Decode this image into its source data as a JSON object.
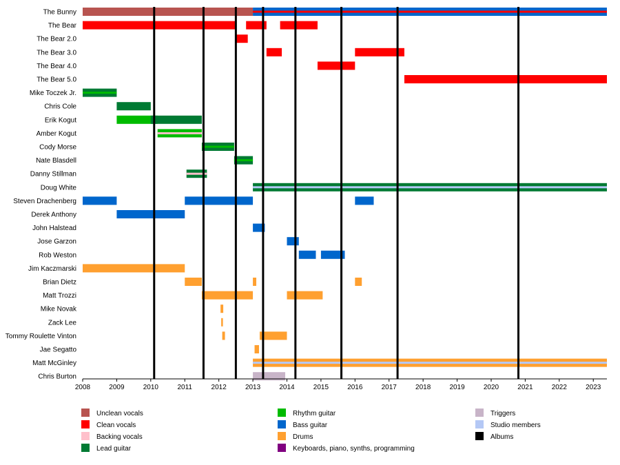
{
  "chart_data": {
    "type": "timeline",
    "title": "",
    "xlabel": "",
    "ylabel": "",
    "xlim": [
      2008.0,
      2023.4
    ],
    "x_ticks": [
      2008,
      2009,
      2010,
      2011,
      2012,
      2013,
      2014,
      2015,
      2016,
      2017,
      2018,
      2019,
      2020,
      2021,
      2022,
      2023
    ],
    "grid": false,
    "legend_position": "bottom",
    "role_colors": {
      "Unclean vocals": "#b85450",
      "Clean vocals": "#ff0000",
      "Backing vocals": "#ffc0cb",
      "Lead guitar": "#007a33",
      "Rhythm guitar": "#00bb00",
      "Bass guitar": "#0066cc",
      "Drums": "#ffa030",
      "Keyboards, piano, synths, programming": "#800080",
      "Triggers": "#c8b4c8",
      "Studio members": "#b4c8f5",
      "Albums": "#000000"
    },
    "legend": [
      {
        "label": "Unclean vocals",
        "color": "#b85450"
      },
      {
        "label": "Clean vocals",
        "color": "#ff0000"
      },
      {
        "label": "Backing vocals",
        "color": "#ffc0cb"
      },
      {
        "label": "Lead guitar",
        "color": "#007a33"
      },
      {
        "label": "Rhythm guitar",
        "color": "#00bb00"
      },
      {
        "label": "Bass guitar",
        "color": "#0066cc"
      },
      {
        "label": "Drums",
        "color": "#ffa030"
      },
      {
        "label": "Keyboards, piano, synths, programming",
        "color": "#800080"
      },
      {
        "label": "Triggers",
        "color": "#c8b4c8"
      },
      {
        "label": "Studio members",
        "color": "#b4c8f5"
      },
      {
        "label": "Albums",
        "color": "#000000"
      }
    ],
    "albums": [
      2010.1,
      2011.55,
      2012.5,
      2013.3,
      2014.25,
      2015.6,
      2017.25,
      2020.8
    ],
    "members": [
      {
        "name": "The Bunny",
        "bars": [
          {
            "start": 2008.0,
            "end": 2013.0,
            "role": "Unclean vocals"
          },
          {
            "start": 2013.0,
            "end": 2023.4,
            "role": "Bass guitar",
            "accent": "Clean vocals"
          }
        ]
      },
      {
        "name": "The Bear",
        "bars": [
          {
            "start": 2008.0,
            "end": 2012.5,
            "role": "Clean vocals"
          },
          {
            "start": 2012.8,
            "end": 2013.4,
            "role": "Clean vocals"
          },
          {
            "start": 2013.8,
            "end": 2014.9,
            "role": "Clean vocals"
          }
        ]
      },
      {
        "name": "The Bear 2.0",
        "bars": [
          {
            "start": 2012.5,
            "end": 2012.85,
            "role": "Clean vocals"
          }
        ]
      },
      {
        "name": "The Bear 3.0",
        "bars": [
          {
            "start": 2013.4,
            "end": 2013.85,
            "role": "Clean vocals"
          },
          {
            "start": 2016.0,
            "end": 2017.45,
            "role": "Clean vocals"
          }
        ]
      },
      {
        "name": "The Bear 4.0",
        "bars": [
          {
            "start": 2014.9,
            "end": 2016.0,
            "role": "Clean vocals"
          }
        ]
      },
      {
        "name": "The Bear 5.0",
        "bars": [
          {
            "start": 2017.45,
            "end": 2023.4,
            "role": "Clean vocals"
          }
        ]
      },
      {
        "name": "Mike Toczek Jr.",
        "bars": [
          {
            "start": 2008.0,
            "end": 2009.0,
            "role": "Lead guitar",
            "accent": "Rhythm guitar"
          }
        ]
      },
      {
        "name": "Chris Cole",
        "bars": [
          {
            "start": 2009.0,
            "end": 2010.0,
            "role": "Lead guitar"
          }
        ]
      },
      {
        "name": "Erik Kogut",
        "bars": [
          {
            "start": 2009.0,
            "end": 2010.2,
            "role": "Rhythm guitar"
          },
          {
            "start": 2010.0,
            "end": 2011.5,
            "role": "Lead guitar"
          }
        ]
      },
      {
        "name": "Amber Kogut",
        "bars": [
          {
            "start": 2010.2,
            "end": 2011.5,
            "role": "Rhythm guitar",
            "accent": "Backing vocals"
          }
        ]
      },
      {
        "name": "Cody Morse",
        "bars": [
          {
            "start": 2011.5,
            "end": 2012.45,
            "role": "Lead guitar",
            "accent": "Rhythm guitar"
          }
        ]
      },
      {
        "name": "Nate Blasdell",
        "bars": [
          {
            "start": 2012.45,
            "end": 2013.0,
            "role": "Lead guitar",
            "accent": "Rhythm guitar"
          }
        ]
      },
      {
        "name": "Danny Stillman",
        "bars": [
          {
            "start": 2011.05,
            "end": 2011.65,
            "role": "Lead guitar",
            "accent": "Backing vocals"
          }
        ]
      },
      {
        "name": "Doug White",
        "bars": [
          {
            "start": 2013.0,
            "end": 2023.4,
            "role": "Lead guitar",
            "accent": "Studio members"
          }
        ]
      },
      {
        "name": "Steven Drachenberg",
        "bars": [
          {
            "start": 2008.0,
            "end": 2009.0,
            "role": "Bass guitar"
          },
          {
            "start": 2011.0,
            "end": 2013.0,
            "role": "Bass guitar"
          },
          {
            "start": 2016.0,
            "end": 2016.55,
            "role": "Bass guitar"
          }
        ]
      },
      {
        "name": "Derek Anthony",
        "bars": [
          {
            "start": 2009.0,
            "end": 2011.0,
            "role": "Bass guitar"
          }
        ]
      },
      {
        "name": "John Halstead",
        "bars": [
          {
            "start": 2013.0,
            "end": 2013.35,
            "role": "Bass guitar"
          }
        ]
      },
      {
        "name": "Jose Garzon",
        "bars": [
          {
            "start": 2014.0,
            "end": 2014.35,
            "role": "Bass guitar"
          }
        ]
      },
      {
        "name": "Rob Weston",
        "bars": [
          {
            "start": 2014.35,
            "end": 2014.85,
            "role": "Bass guitar"
          },
          {
            "start": 2015.0,
            "end": 2015.7,
            "role": "Bass guitar"
          }
        ]
      },
      {
        "name": "Jim Kaczmarski",
        "bars": [
          {
            "start": 2008.0,
            "end": 2011.0,
            "role": "Drums"
          }
        ]
      },
      {
        "name": "Brian Dietz",
        "bars": [
          {
            "start": 2011.0,
            "end": 2011.5,
            "role": "Drums"
          },
          {
            "start": 2013.0,
            "end": 2013.1,
            "role": "Drums"
          },
          {
            "start": 2016.0,
            "end": 2016.2,
            "role": "Drums"
          }
        ]
      },
      {
        "name": "Matt Trozzi",
        "bars": [
          {
            "start": 2011.5,
            "end": 2013.0,
            "role": "Drums"
          },
          {
            "start": 2014.0,
            "end": 2015.05,
            "role": "Drums"
          }
        ]
      },
      {
        "name": "Mike Novak",
        "bars": [
          {
            "start": 2012.05,
            "end": 2012.13,
            "role": "Drums"
          }
        ]
      },
      {
        "name": "Zack Lee",
        "bars": [
          {
            "start": 2012.07,
            "end": 2012.12,
            "role": "Drums"
          }
        ]
      },
      {
        "name": "Tommy Roulette Vinton",
        "bars": [
          {
            "start": 2012.1,
            "end": 2012.18,
            "role": "Drums"
          },
          {
            "start": 2013.2,
            "end": 2014.0,
            "role": "Drums"
          }
        ]
      },
      {
        "name": "Jae Segatto",
        "bars": [
          {
            "start": 2013.05,
            "end": 2013.18,
            "role": "Drums"
          }
        ]
      },
      {
        "name": "Matt McGinley",
        "bars": [
          {
            "start": 2013.0,
            "end": 2023.4,
            "role": "Drums",
            "accent": "Studio members"
          }
        ]
      },
      {
        "name": "Chris Burton",
        "bars": [
          {
            "start": 2013.0,
            "end": 2013.95,
            "role": "Triggers"
          }
        ]
      }
    ]
  }
}
